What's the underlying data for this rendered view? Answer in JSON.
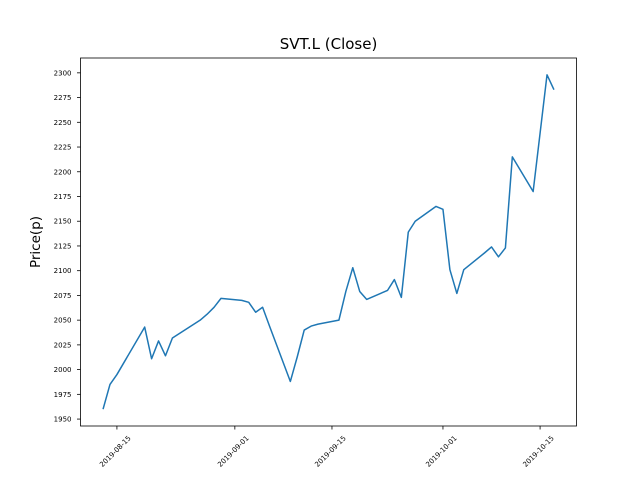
{
  "chart_data": {
    "type": "line",
    "title": "SVT.L (Close)",
    "ylabel": "Price(p)",
    "xlabel": "",
    "line_color": "#1f77b4",
    "background_color": "#ffffff",
    "axes_color": "#000000",
    "grid": false,
    "legend": null,
    "ylim": [
      1943,
      2315
    ],
    "xlim": [
      "2019-08-09T18:00:00Z",
      "2019-10-20T06:00:00Z"
    ],
    "yticks": [
      1950,
      1975,
      2000,
      2025,
      2050,
      2075,
      2100,
      2125,
      2150,
      2175,
      2200,
      2225,
      2250,
      2275,
      2300
    ],
    "xticks": [
      "2019-08-15",
      "2019-09-01",
      "2019-09-15",
      "2019-10-01",
      "2019-10-15"
    ],
    "x": [
      "2019-08-13",
      "2019-08-14",
      "2019-08-15",
      "2019-08-16",
      "2019-08-19",
      "2019-08-20",
      "2019-08-21",
      "2019-08-22",
      "2019-08-23",
      "2019-08-27",
      "2019-08-28",
      "2019-08-29",
      "2019-08-30",
      "2019-09-02",
      "2019-09-03",
      "2019-09-04",
      "2019-09-05",
      "2019-09-06",
      "2019-09-09",
      "2019-09-10",
      "2019-09-11",
      "2019-09-12",
      "2019-09-13",
      "2019-09-16",
      "2019-09-17",
      "2019-09-18",
      "2019-09-19",
      "2019-09-20",
      "2019-09-23",
      "2019-09-24",
      "2019-09-25",
      "2019-09-26",
      "2019-09-27",
      "2019-09-30",
      "2019-10-01",
      "2019-10-02",
      "2019-10-03",
      "2019-10-04",
      "2019-10-07",
      "2019-10-08",
      "2019-10-09",
      "2019-10-10",
      "2019-10-11",
      "2019-10-14",
      "2019-10-15",
      "2019-10-16",
      "2019-10-17"
    ],
    "values": [
      1960,
      1985,
      1995,
      2007,
      2043,
      2011,
      2029,
      2014,
      2032,
      2050,
      2056,
      2063,
      2072,
      2070,
      2068,
      2058,
      2063,
      2044,
      1988,
      2013,
      2040,
      2044,
      2046,
      2050,
      2079,
      2103,
      2079,
      2071,
      2080,
      2091,
      2073,
      2139,
      2150,
      2165,
      2162,
      2101,
      2077,
      2101,
      2118,
      2124,
      2114,
      2123,
      2215,
      2180,
      2239,
      2298,
      2283
    ]
  }
}
